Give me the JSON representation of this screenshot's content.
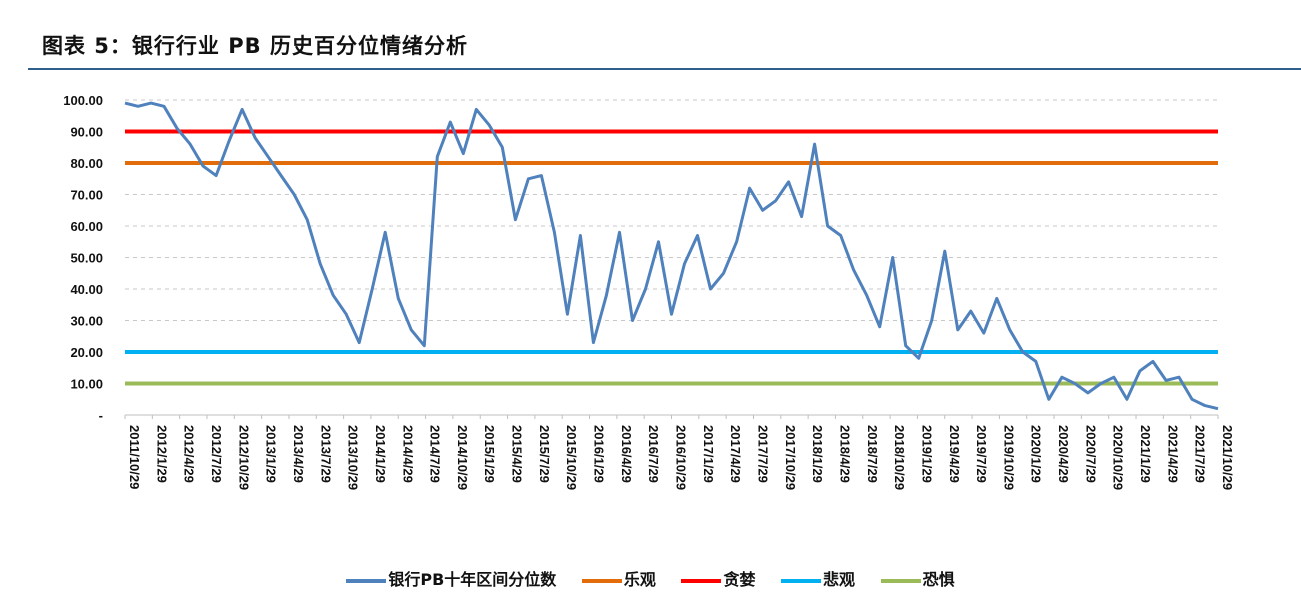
{
  "title": "图表 5：银行行业 PB 历史百分位情绪分析",
  "chart_data": {
    "type": "line",
    "ylim": [
      0,
      100
    ],
    "yticks": [
      "100.00",
      "90.00",
      "80.00",
      "70.00",
      "60.00",
      "50.00",
      "40.00",
      "30.00",
      "20.00",
      "10.00",
      "-"
    ],
    "ytick_values": [
      100,
      90,
      80,
      70,
      60,
      50,
      40,
      30,
      20,
      10,
      0
    ],
    "grid": true,
    "legend_position": "bottom",
    "x_labels": [
      "2011/10/29",
      "2012/1/29",
      "2012/4/29",
      "2012/7/29",
      "2012/10/29",
      "2013/1/29",
      "2013/4/29",
      "2013/7/29",
      "2013/10/29",
      "2014/1/29",
      "2014/4/29",
      "2014/7/29",
      "2014/10/29",
      "2015/1/29",
      "2015/4/29",
      "2015/7/29",
      "2015/10/29",
      "2016/1/29",
      "2016/4/29",
      "2016/7/29",
      "2016/10/29",
      "2017/1/29",
      "2017/4/29",
      "2017/7/29",
      "2017/10/29",
      "2018/1/29",
      "2018/4/29",
      "2018/7/29",
      "2018/10/29",
      "2019/1/29",
      "2019/4/29",
      "2019/7/29",
      "2019/10/29",
      "2020/1/29",
      "2020/4/29",
      "2020/7/29",
      "2020/10/29",
      "2021/1/29",
      "2021/4/29",
      "2021/7/29",
      "2021/10/29"
    ],
    "series": [
      {
        "name": "银行PB十年区间分位数",
        "color": "#4f81bd",
        "values": [
          99,
          98,
          99,
          98,
          91,
          86,
          79,
          76,
          87,
          97,
          88,
          82,
          76,
          70,
          62,
          48,
          38,
          32,
          23,
          40,
          58,
          37,
          27,
          22,
          82,
          93,
          83,
          97,
          92,
          85,
          62,
          75,
          76,
          58,
          32,
          57,
          23,
          38,
          58,
          30,
          40,
          55,
          32,
          48,
          57,
          40,
          45,
          55,
          72,
          65,
          68,
          74,
          63,
          86,
          60,
          57,
          46,
          38,
          28,
          50,
          22,
          18,
          30,
          52,
          27,
          33,
          26,
          37,
          27,
          20,
          17,
          5,
          12,
          10,
          7,
          10,
          12,
          5,
          14,
          17,
          11,
          12,
          5,
          3,
          2
        ]
      },
      {
        "name": "乐观",
        "color": "#e36c0a",
        "constant": 80
      },
      {
        "name": "贪婪",
        "color": "#ff0000",
        "constant": 90
      },
      {
        "name": "悲观",
        "color": "#00b0f0",
        "constant": 20
      },
      {
        "name": "恐惧",
        "color": "#9bbb59",
        "constant": 10
      }
    ]
  }
}
